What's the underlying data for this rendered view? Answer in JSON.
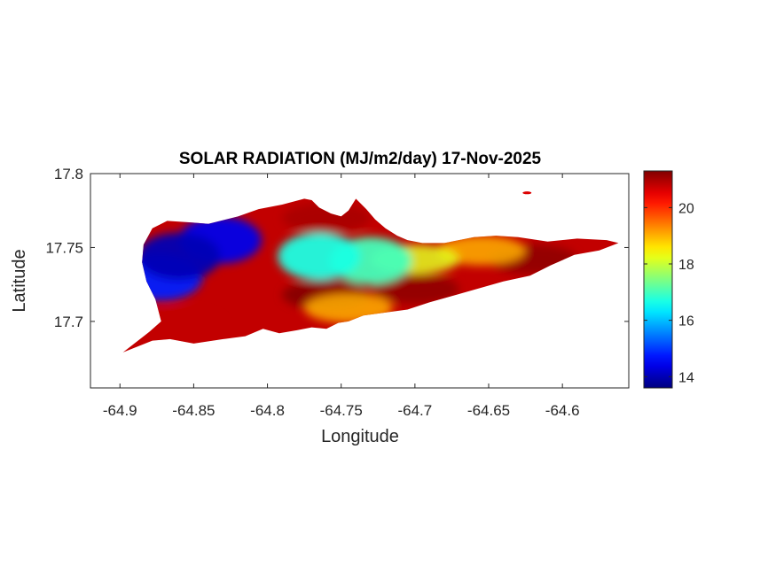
{
  "figure": {
    "title": "SOLAR RADIATION (MJ/m2/day) 17-Nov-2025",
    "xlabel": "Longitude",
    "ylabel": "Latitude"
  },
  "chart_data": {
    "type": "heatmap",
    "title": "SOLAR RADIATION (MJ/m2/day) 17-Nov-2025",
    "xlabel": "Longitude",
    "ylabel": "Latitude",
    "xlim": [
      -64.92,
      -64.555
    ],
    "ylim": [
      17.655,
      17.8
    ],
    "x_ticks": [
      -64.9,
      -64.85,
      -64.8,
      -64.75,
      -64.7,
      -64.65,
      -64.6
    ],
    "x_tick_labels": [
      "-64.9",
      "-64.85",
      "-64.8",
      "-64.75",
      "-64.7",
      "-64.65",
      "-64.6"
    ],
    "y_ticks": [
      17.7,
      17.75,
      17.8
    ],
    "y_tick_labels": [
      "17.7",
      "17.75",
      "17.8"
    ],
    "colormap": "jet",
    "colorbar": {
      "min": 13.6,
      "max": 21.3,
      "ticks": [
        14,
        16,
        18,
        20
      ],
      "tick_labels": [
        "14",
        "16",
        "18",
        "20"
      ]
    },
    "grid": false,
    "region_outline": [
      [
        -64.898,
        17.679
      ],
      [
        -64.88,
        17.693
      ],
      [
        -64.872,
        17.7
      ],
      [
        -64.876,
        17.715
      ],
      [
        -64.882,
        17.727
      ],
      [
        -64.885,
        17.74
      ],
      [
        -64.884,
        17.752
      ],
      [
        -64.878,
        17.763
      ],
      [
        -64.868,
        17.768
      ],
      [
        -64.852,
        17.767
      ],
      [
        -64.84,
        17.766
      ],
      [
        -64.82,
        17.771
      ],
      [
        -64.806,
        17.776
      ],
      [
        -64.79,
        17.779
      ],
      [
        -64.775,
        17.783
      ],
      [
        -64.77,
        17.782
      ],
      [
        -64.765,
        17.777
      ],
      [
        -64.757,
        17.773
      ],
      [
        -64.75,
        17.771
      ],
      [
        -64.745,
        17.775
      ],
      [
        -64.74,
        17.783
      ],
      [
        -64.733,
        17.776
      ],
      [
        -64.727,
        17.769
      ],
      [
        -64.72,
        17.763
      ],
      [
        -64.712,
        17.758
      ],
      [
        -64.705,
        17.755
      ],
      [
        -64.695,
        17.753
      ],
      [
        -64.68,
        17.753
      ],
      [
        -64.66,
        17.757
      ],
      [
        -64.645,
        17.758
      ],
      [
        -64.63,
        17.757
      ],
      [
        -64.61,
        17.754
      ],
      [
        -64.59,
        17.756
      ],
      [
        -64.57,
        17.755
      ],
      [
        -64.562,
        17.753
      ],
      [
        -64.575,
        17.748
      ],
      [
        -64.592,
        17.745
      ],
      [
        -64.608,
        17.738
      ],
      [
        -64.622,
        17.731
      ],
      [
        -64.64,
        17.727
      ],
      [
        -64.658,
        17.722
      ],
      [
        -64.672,
        17.718
      ],
      [
        -64.69,
        17.713
      ],
      [
        -64.705,
        17.708
      ],
      [
        -64.72,
        17.706
      ],
      [
        -64.735,
        17.704
      ],
      [
        -64.745,
        17.7
      ],
      [
        -64.752,
        17.699
      ],
      [
        -64.76,
        17.695
      ],
      [
        -64.77,
        17.696
      ],
      [
        -64.78,
        17.694
      ],
      [
        -64.792,
        17.692
      ],
      [
        -64.803,
        17.695
      ],
      [
        -64.815,
        17.69
      ],
      [
        -64.83,
        17.688
      ],
      [
        -64.85,
        17.685
      ],
      [
        -64.866,
        17.688
      ],
      [
        -64.878,
        17.687
      ],
      [
        -64.888,
        17.683
      ]
    ],
    "small_islet": {
      "lon": -64.624,
      "lat": 17.787
    },
    "field_features": [
      {
        "name": "western-low-core",
        "lon": -64.86,
        "lat": 17.744,
        "value": 14.0
      },
      {
        "name": "northwest-low",
        "lon": -64.832,
        "lat": 17.755,
        "value": 14.4
      },
      {
        "name": "southwest-low",
        "lon": -64.872,
        "lat": 17.73,
        "value": 14.8
      },
      {
        "name": "central-ridge-cyan",
        "lon": -64.765,
        "lat": 17.744,
        "value": 16.7
      },
      {
        "name": "eastern-ridge-cyan",
        "lon": -64.73,
        "lat": 17.741,
        "value": 17.0
      },
      {
        "name": "ridge-end",
        "lon": -64.7,
        "lat": 17.742,
        "value": 18.2
      },
      {
        "name": "east-coast-yellow",
        "lon": -64.655,
        "lat": 17.748,
        "value": 19.0
      },
      {
        "name": "south-coast-yellow",
        "lon": -64.745,
        "lat": 17.709,
        "value": 19.0
      },
      {
        "name": "north-coast-high",
        "lon": -64.76,
        "lat": 17.77,
        "value": 21.0
      },
      {
        "name": "south-high",
        "lon": -64.76,
        "lat": 17.718,
        "value": 21.3
      },
      {
        "name": "southeast-high",
        "lon": -64.7,
        "lat": 17.722,
        "value": 21.2
      },
      {
        "name": "east-high",
        "lon": -64.62,
        "lat": 17.742,
        "value": 21.2
      },
      {
        "name": "southwest-high",
        "lon": -64.86,
        "lat": 17.698,
        "value": 20.8
      }
    ],
    "background_value": 20.8
  }
}
